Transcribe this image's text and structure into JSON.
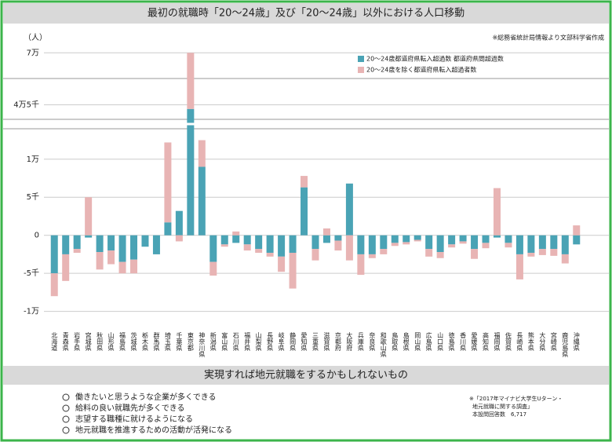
{
  "chart_data": {
    "type": "stacked_bar",
    "title": "最初の就職時「20〜24歳」及び「20〜24歳」以外における人口移動",
    "y_label": "（人）",
    "source": "※総務省統計局情報より文部科学省作成",
    "categories": [
      "北海道",
      "青森県",
      "岩手県",
      "宮城県",
      "秋田県",
      "山形県",
      "福島県",
      "茨城県",
      "栃木県",
      "群馬県",
      "埼玉県",
      "千葉県",
      "東京都",
      "神奈川県",
      "新潟県",
      "富山県",
      "石川県",
      "福井県",
      "山梨県",
      "長野県",
      "岐阜県",
      "静岡県",
      "愛知県",
      "三重県",
      "滋賀県",
      "京都府",
      "大阪府",
      "兵庫県",
      "奈良県",
      "和歌山県",
      "鳥取県",
      "島根県",
      "岡山県",
      "広島県",
      "山口県",
      "徳島県",
      "香川県",
      "愛媛県",
      "高知県",
      "福岡県",
      "佐賀県",
      "長崎県",
      "熊本県",
      "大分県",
      "宮崎県",
      "鹿児島県",
      "沖縄県"
    ],
    "series": [
      {
        "name": "20〜24歳都道府県転入超過数 都道府県間超過数",
        "color": "#4aa3b5",
        "values": [
          -5000,
          -2500,
          -1800,
          -300,
          -2200,
          -2000,
          -3500,
          -3200,
          -1500,
          -2500,
          1700,
          3200,
          43000,
          9000,
          -3500,
          -1200,
          -1000,
          -1200,
          -1800,
          -2300,
          -2800,
          -2300,
          6300,
          -1800,
          -1000,
          -700,
          6800,
          -2500,
          -2500,
          -1800,
          -1000,
          -900,
          -600,
          -1800,
          -2200,
          -1200,
          -800,
          -1800,
          -1000,
          -300,
          -1000,
          -2500,
          -2300,
          -1800,
          -1800,
          -2500,
          -1200
        ]
      },
      {
        "name": "20〜24歳を除く都道府県転入超過者数",
        "color": "#e8b4b4",
        "values": [
          -3000,
          -3500,
          -500,
          5000,
          -2300,
          -1800,
          -1500,
          -1800,
          0,
          0,
          10500,
          -800,
          27000,
          3500,
          -1800,
          -300,
          500,
          -800,
          -500,
          -500,
          -2000,
          -4700,
          1500,
          -1500,
          900,
          -1300,
          -3300,
          -2700,
          -500,
          -700,
          -400,
          -300,
          -200,
          -1000,
          -800,
          -400,
          -300,
          -1300,
          -700,
          6200,
          -600,
          -3300,
          -500,
          -800,
          -900,
          -1200,
          1300
        ]
      }
    ],
    "ylim": [
      -12000,
      72000
    ],
    "y_break": [
      14000,
      38000
    ],
    "yticks": [
      {
        "value": -10000,
        "label": "-1万"
      },
      {
        "value": -5000,
        "label": "-5千"
      },
      0,
      {
        "value": 5000,
        "label": "5千"
      },
      {
        "value": 10000,
        "label": "1万"
      },
      {
        "value": 45000,
        "label": "4万5千"
      },
      {
        "value": 70000,
        "label": "7万"
      }
    ],
    "grid": true
  },
  "survey": {
    "title": "実現すれば地元就職をするかもしれないもの",
    "items": [
      "働きたいと思うような企業が多くできる",
      "給料の良い就職先が多くできる",
      "志望する職種に就けるようになる",
      "地元就職を推進するための活動が活発になる"
    ],
    "note": [
      "※「2017年マイナビ大学生Uターン・",
      "地元就職に関する調査」",
      "本設問回答数　6,717"
    ]
  }
}
